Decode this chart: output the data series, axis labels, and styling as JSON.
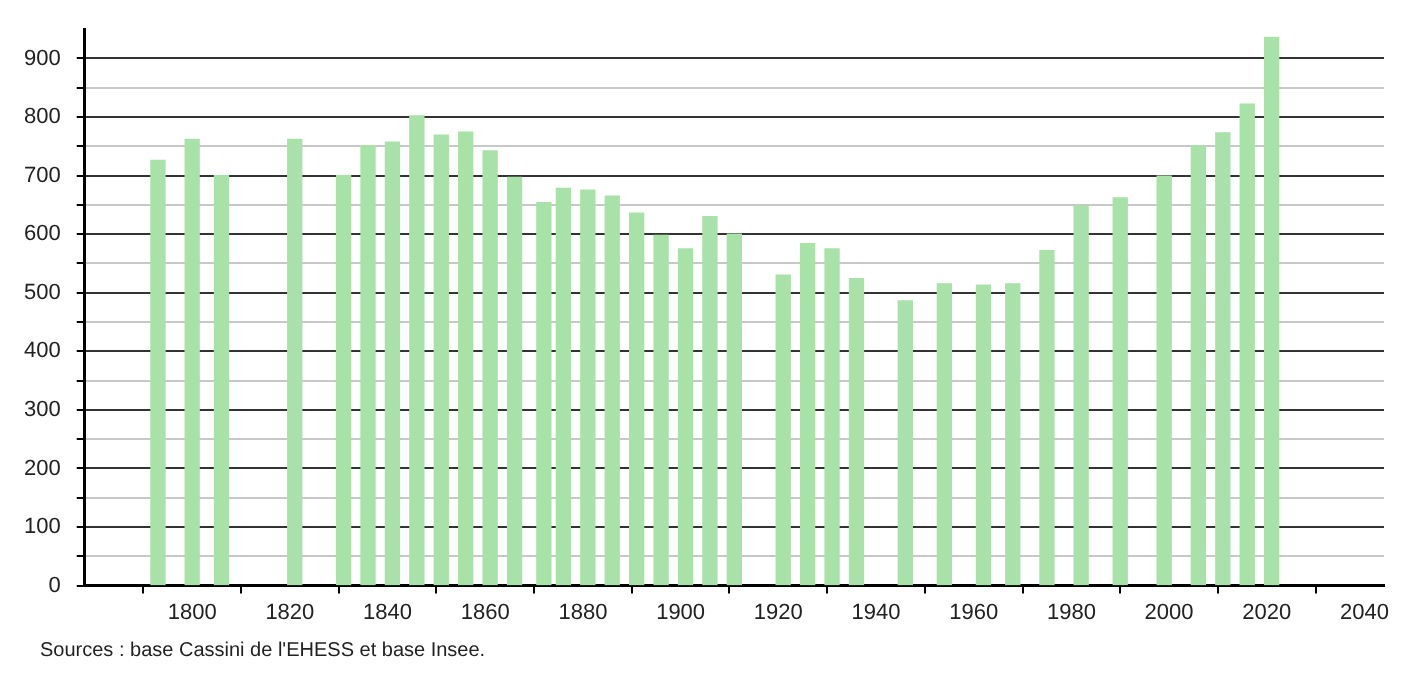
{
  "chart_data": {
    "type": "bar",
    "x": [
      1793,
      1800,
      1806,
      1821,
      1831,
      1836,
      1841,
      1846,
      1851,
      1856,
      1861,
      1866,
      1872,
      1876,
      1881,
      1886,
      1891,
      1896,
      1901,
      1906,
      1911,
      1921,
      1926,
      1931,
      1936,
      1946,
      1954,
      1962,
      1968,
      1975,
      1982,
      1990,
      1999,
      2006,
      2011,
      2016,
      2021
    ],
    "values": [
      726,
      762,
      700,
      762,
      700,
      751,
      757,
      802,
      769,
      774,
      742,
      697,
      654,
      678,
      675,
      665,
      636,
      598,
      575,
      630,
      600,
      530,
      584,
      575,
      524,
      486,
      515,
      513,
      515,
      572,
      648,
      662,
      699,
      751,
      773,
      822,
      936
    ],
    "color": "#a8e2a8",
    "xlim": [
      1778,
      2044
    ],
    "xticks": [
      1800,
      1820,
      1840,
      1860,
      1880,
      1900,
      1920,
      1940,
      1960,
      1980,
      2000,
      2020,
      2040
    ],
    "ylim": [
      0,
      950
    ],
    "yticks": [
      0,
      {
        "value": 50,
        "label": null
      },
      100,
      {
        "value": 150,
        "label": null
      },
      200,
      {
        "value": 250,
        "label": null
      },
      300,
      {
        "value": 350,
        "label": null
      },
      400,
      {
        "value": 450,
        "label": null
      },
      500,
      {
        "value": 550,
        "label": null
      },
      600,
      {
        "value": 650,
        "label": null
      },
      700,
      {
        "value": 750,
        "label": null
      },
      800,
      {
        "value": 850,
        "label": null
      },
      900
    ],
    "grid": "y",
    "legend": false,
    "annotations": [
      "Sources : base Cassini de l'EHESS et base Insee."
    ]
  }
}
